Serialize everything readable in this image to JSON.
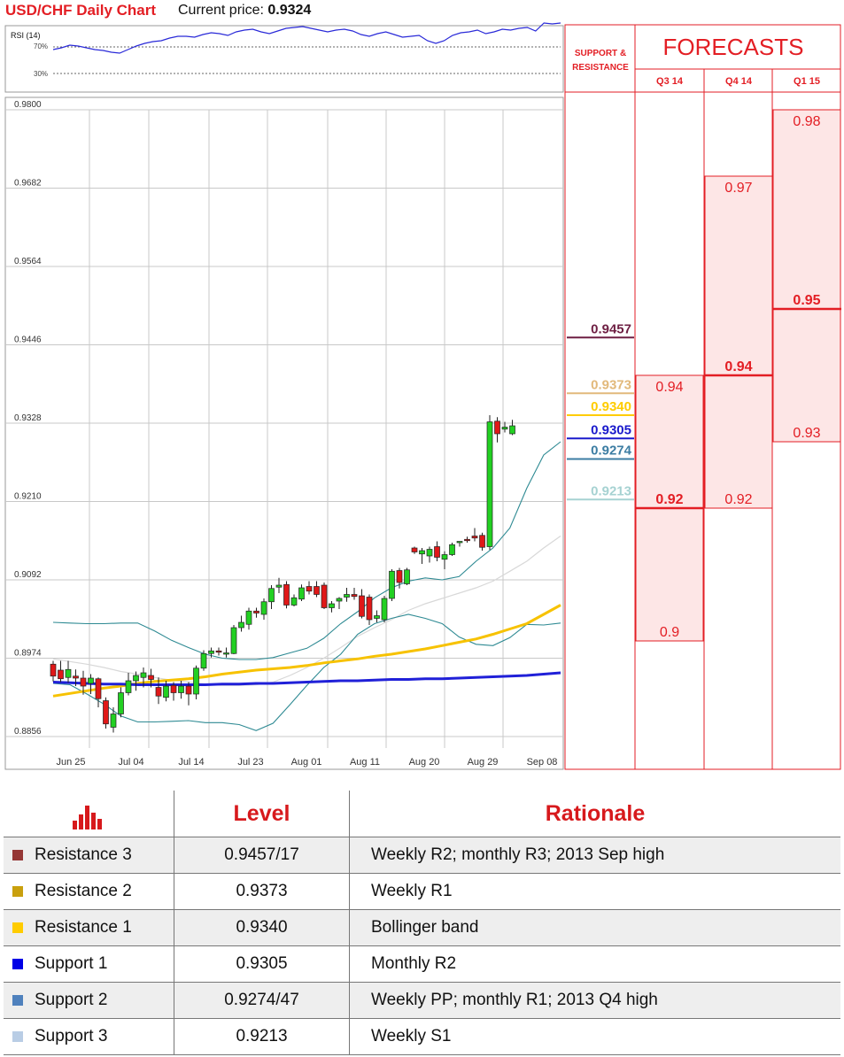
{
  "header": {
    "title": "USD/CHF Daily Chart",
    "price_label": "Current price:",
    "price_value": "0.9324"
  },
  "rsi": {
    "label": "RSI (14)",
    "levels": [
      "70%",
      "30%"
    ],
    "values": [
      48,
      50,
      53,
      52,
      50,
      48,
      47,
      45,
      44,
      48,
      52,
      55,
      57,
      58,
      61,
      63,
      63,
      62,
      65,
      67,
      66,
      64,
      68,
      70,
      71,
      68,
      66,
      69,
      72,
      73,
      74,
      72,
      70,
      68,
      70,
      71,
      69,
      65,
      63,
      66,
      68,
      65,
      62,
      63,
      64,
      58,
      55,
      58,
      64,
      67,
      68,
      70,
      66,
      68,
      71,
      70,
      72,
      73,
      69,
      78,
      77,
      78
    ]
  },
  "chart_data": {
    "type": "candlestick",
    "title": "USD/CHF Daily Chart",
    "y_ticks": [
      "0.9800",
      "0.9682",
      "0.9564",
      "0.9446",
      "0.9328",
      "0.9210",
      "0.9092",
      "0.8974",
      "0.8856"
    ],
    "ylim": [
      0.8856,
      0.98
    ],
    "x_ticks": [
      "Jun 25",
      "Jul 04",
      "Jul 14",
      "Jul 23",
      "Aug 01",
      "Aug 11",
      "Aug 20",
      "Aug 29",
      "Sep 08"
    ],
    "candles": [
      [
        0.8965,
        0.897,
        0.8939,
        0.8947
      ],
      [
        0.8956,
        0.897,
        0.8938,
        0.8943
      ],
      [
        0.8945,
        0.897,
        0.8937,
        0.8957
      ],
      [
        0.8947,
        0.8957,
        0.8932,
        0.8944
      ],
      [
        0.8944,
        0.8955,
        0.8919,
        0.8932
      ],
      [
        0.8936,
        0.895,
        0.892,
        0.8944
      ],
      [
        0.8943,
        0.8945,
        0.89,
        0.8913
      ],
      [
        0.891,
        0.8915,
        0.8868,
        0.8875
      ],
      [
        0.887,
        0.89,
        0.8862,
        0.889
      ],
      [
        0.889,
        0.893,
        0.8885,
        0.8922
      ],
      [
        0.8922,
        0.8952,
        0.8918,
        0.894
      ],
      [
        0.894,
        0.8954,
        0.8925,
        0.8948
      ],
      [
        0.8945,
        0.896,
        0.893,
        0.8952
      ],
      [
        0.8948,
        0.8958,
        0.893,
        0.8942
      ],
      [
        0.893,
        0.8945,
        0.8905,
        0.8917
      ],
      [
        0.8915,
        0.894,
        0.8909,
        0.8932
      ],
      [
        0.8933,
        0.8938,
        0.891,
        0.8922
      ],
      [
        0.8922,
        0.894,
        0.8913,
        0.8932
      ],
      [
        0.8932,
        0.8938,
        0.8903,
        0.892
      ],
      [
        0.892,
        0.8963,
        0.8912,
        0.8959
      ],
      [
        0.8959,
        0.8986,
        0.8955,
        0.8981
      ],
      [
        0.8981,
        0.899,
        0.8975,
        0.8985
      ],
      [
        0.8985,
        0.899,
        0.8978,
        0.8983
      ],
      [
        0.898,
        0.899,
        0.8975,
        0.8982
      ],
      [
        0.8981,
        0.9024,
        0.898,
        0.902
      ],
      [
        0.902,
        0.9038,
        0.9014,
        0.9028
      ],
      [
        0.9025,
        0.905,
        0.9017,
        0.9045
      ],
      [
        0.9045,
        0.905,
        0.9035,
        0.9042
      ],
      [
        0.904,
        0.9064,
        0.9032,
        0.9059
      ],
      [
        0.9059,
        0.9084,
        0.9048,
        0.9079
      ],
      [
        0.9081,
        0.9095,
        0.9072,
        0.9084
      ],
      [
        0.9085,
        0.909,
        0.9049,
        0.9054
      ],
      [
        0.9054,
        0.907,
        0.9052,
        0.9065
      ],
      [
        0.9063,
        0.9085,
        0.906,
        0.908
      ],
      [
        0.9082,
        0.909,
        0.907,
        0.9075
      ],
      [
        0.9082,
        0.909,
        0.9066,
        0.907
      ],
      [
        0.9084,
        0.9088,
        0.9048,
        0.905
      ],
      [
        0.905,
        0.906,
        0.9043,
        0.9056
      ],
      [
        0.906,
        0.9066,
        0.9048,
        0.9064
      ],
      [
        0.9066,
        0.908,
        0.9059,
        0.907
      ],
      [
        0.907,
        0.908,
        0.9062,
        0.9067
      ],
      [
        0.9068,
        0.9078,
        0.9034,
        0.9037
      ],
      [
        0.9066,
        0.907,
        0.9024,
        0.9032
      ],
      [
        0.9034,
        0.9046,
        0.9028,
        0.9038
      ],
      [
        0.9032,
        0.9068,
        0.9028,
        0.9064
      ],
      [
        0.9064,
        0.9108,
        0.906,
        0.9105
      ],
      [
        0.9106,
        0.911,
        0.9079,
        0.9088
      ],
      [
        0.9086,
        0.911,
        0.9084,
        0.9107
      ],
      [
        0.914,
        0.9142,
        0.9131,
        0.9134
      ],
      [
        0.9131,
        0.914,
        0.9116,
        0.9136
      ],
      [
        0.9128,
        0.9142,
        0.9118,
        0.9138
      ],
      [
        0.9142,
        0.915,
        0.912,
        0.9126
      ],
      [
        0.9123,
        0.9135,
        0.9108,
        0.913
      ],
      [
        0.913,
        0.9148,
        0.9128,
        0.9145
      ],
      [
        0.915,
        0.915,
        0.9142,
        0.915
      ],
      [
        0.9153,
        0.9157,
        0.9148,
        0.9152
      ],
      [
        0.9158,
        0.917,
        0.915,
        0.9155
      ],
      [
        0.9159,
        0.9163,
        0.9136,
        0.9141
      ],
      [
        0.9142,
        0.934,
        0.9137,
        0.933
      ],
      [
        0.9331,
        0.9337,
        0.9299,
        0.9312
      ],
      [
        0.9319,
        0.933,
        0.9314,
        0.9322
      ],
      [
        0.9312,
        0.9333,
        0.931,
        0.9324
      ]
    ],
    "bollinger": {
      "upper": [
        0.9028,
        0.9027,
        0.9026,
        0.9026,
        0.9027,
        0.9027,
        0.9015,
        0.9001,
        0.899,
        0.898,
        0.8974,
        0.8972,
        0.8972,
        0.8975,
        0.8982,
        0.8989,
        0.9004,
        0.9026,
        0.9044,
        0.9065,
        0.908,
        0.909,
        0.9095,
        0.9092,
        0.9097,
        0.912,
        0.914,
        0.917,
        0.923,
        0.928,
        0.93
      ],
      "lower": [
        0.8936,
        0.8934,
        0.892,
        0.8905,
        0.8887,
        0.8878,
        0.8878,
        0.8879,
        0.888,
        0.8877,
        0.8877,
        0.8874,
        0.8865,
        0.8876,
        0.8904,
        0.8933,
        0.896,
        0.898,
        0.901,
        0.9026,
        0.9034,
        0.904,
        0.9034,
        0.9026,
        0.9006,
        0.8995,
        0.8993,
        0.9005,
        0.9025,
        0.9024,
        0.9027
      ],
      "middle": [
        0.8973,
        0.8969,
        0.8965,
        0.896,
        0.8954,
        0.895,
        0.8945,
        0.8941,
        0.8938,
        0.8935,
        0.8933,
        0.8933,
        0.8934,
        0.8938,
        0.8948,
        0.896,
        0.8974,
        0.899,
        0.9007,
        0.902,
        0.9032,
        0.9046,
        0.9056,
        0.9064,
        0.9072,
        0.908,
        0.909,
        0.9105,
        0.912,
        0.914,
        0.9158
      ]
    },
    "ma_yellow": [
      0.8917,
      0.8921,
      0.8925,
      0.8929,
      0.8932,
      0.8936,
      0.8939,
      0.8941,
      0.8943,
      0.8946,
      0.895,
      0.8953,
      0.8956,
      0.8958,
      0.896,
      0.8963,
      0.8967,
      0.897,
      0.8973,
      0.8977,
      0.898,
      0.8984,
      0.8988,
      0.8993,
      0.8998,
      0.9003,
      0.901,
      0.9018,
      0.9026,
      0.904,
      0.9054
    ],
    "ma_blue": [
      0.8938,
      0.8937,
      0.8936,
      0.8935,
      0.8935,
      0.8934,
      0.8934,
      0.8934,
      0.8934,
      0.8934,
      0.8935,
      0.8935,
      0.8936,
      0.8936,
      0.8937,
      0.8938,
      0.8939,
      0.894,
      0.894,
      0.8941,
      0.8942,
      0.8942,
      0.8943,
      0.8943,
      0.8944,
      0.8945,
      0.8946,
      0.8947,
      0.8948,
      0.895,
      0.8952
    ]
  },
  "support_resistance": {
    "header": "SUPPORT & RESISTANCE",
    "levels": [
      {
        "value": 0.9457,
        "label": "0.9457",
        "color": "#6e1f43"
      },
      {
        "value": 0.9373,
        "label": "0.9373",
        "color": "#e2b97b"
      },
      {
        "value": 0.934,
        "label": "0.9340",
        "color": "#ffcc00"
      },
      {
        "value": 0.9305,
        "label": "0.9305",
        "color": "#1a1acc"
      },
      {
        "value": 0.9274,
        "label": "0.9274",
        "color": "#3c7da3"
      },
      {
        "value": 0.9213,
        "label": "0.9213",
        "color": "#a6d2d2"
      }
    ]
  },
  "forecasts": {
    "title": "FORECASTS",
    "columns": [
      {
        "label": "Q3 14",
        "high": 0.94,
        "high_label": "0.94",
        "mid": 0.92,
        "mid_label": "0.92",
        "low": 0.9,
        "low_label": "0.9"
      },
      {
        "label": "Q4 14",
        "high": 0.97,
        "high_label": "0.97",
        "mid": 0.94,
        "mid_label": "0.94",
        "low": 0.92,
        "low_label": "0.92"
      },
      {
        "label": "Q1 15",
        "high": 0.98,
        "high_label": "0.98",
        "mid": 0.95,
        "mid_label": "0.95",
        "low": 0.93,
        "low_label": "0.93"
      }
    ]
  },
  "levels_table": {
    "icon": "bar-chart-icon",
    "headers": [
      "Level",
      "Rationale"
    ],
    "rows": [
      {
        "name": "Resistance 3",
        "level": "0.9457/17",
        "rationale": "Weekly R2; monthly R3; 2013 Sep high",
        "color": "#953735"
      },
      {
        "name": "Resistance 2",
        "level": "0.9373",
        "rationale": "Weekly R1",
        "color": "#c9a00e"
      },
      {
        "name": "Resistance 1",
        "level": "0.9340",
        "rationale": "Bollinger band",
        "color": "#ffcc00"
      },
      {
        "name": "Support 1",
        "level": "0.9305",
        "rationale": "Monthly R2",
        "color": "#0000e6"
      },
      {
        "name": "Support 2",
        "level": "0.9274/47",
        "rationale": "Weekly PP; monthly R1; 2013 Q4 high",
        "color": "#4f81bd"
      },
      {
        "name": "Support 3",
        "level": "0.9213",
        "rationale": "Weekly S1",
        "color": "#b9cde5"
      }
    ]
  }
}
